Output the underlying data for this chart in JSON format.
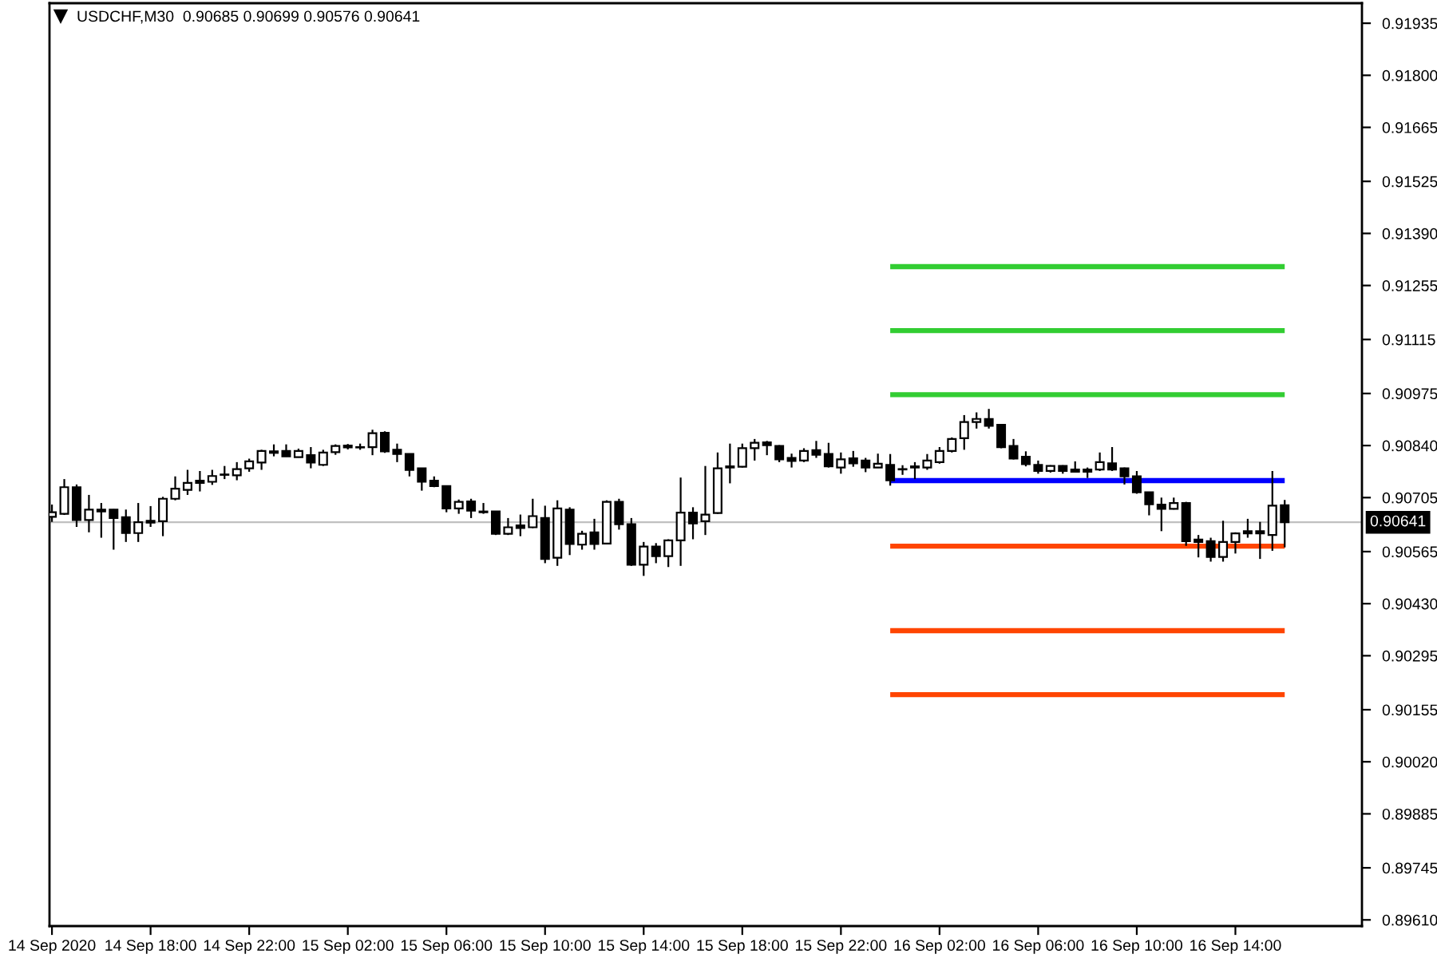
{
  "chart_data": {
    "type": "candlestick",
    "title": "USDCHF,M30  0.90685 0.90699 0.90576 0.90641",
    "color": "#000000",
    "x": [
      "2020-09-14T14:00",
      "2020-09-14T14:30",
      "2020-09-14T15:00",
      "2020-09-14T15:30",
      "2020-09-14T16:00",
      "2020-09-14T16:30",
      "2020-09-14T17:00",
      "2020-09-14T17:30",
      "2020-09-14T18:00",
      "2020-09-14T18:30",
      "2020-09-14T19:00",
      "2020-09-14T19:30",
      "2020-09-14T20:00",
      "2020-09-14T20:30",
      "2020-09-14T21:00",
      "2020-09-14T21:30",
      "2020-09-14T22:00",
      "2020-09-14T22:30",
      "2020-09-14T23:00",
      "2020-09-14T23:30",
      "2020-09-15T00:00",
      "2020-09-15T00:30",
      "2020-09-15T01:00",
      "2020-09-15T01:30",
      "2020-09-15T02:00",
      "2020-09-15T02:30",
      "2020-09-15T03:00",
      "2020-09-15T03:30",
      "2020-09-15T04:00",
      "2020-09-15T04:30",
      "2020-09-15T05:00",
      "2020-09-15T05:30",
      "2020-09-15T06:00",
      "2020-09-15T06:30",
      "2020-09-15T07:00",
      "2020-09-15T07:30",
      "2020-09-15T08:00",
      "2020-09-15T08:30",
      "2020-09-15T09:00",
      "2020-09-15T09:30",
      "2020-09-15T10:00",
      "2020-09-15T10:30",
      "2020-09-15T11:00",
      "2020-09-15T11:30",
      "2020-09-15T12:00",
      "2020-09-15T12:30",
      "2020-09-15T13:00",
      "2020-09-15T13:30",
      "2020-09-15T14:00",
      "2020-09-15T14:30",
      "2020-09-15T15:00",
      "2020-09-15T15:30",
      "2020-09-15T16:00",
      "2020-09-15T16:30",
      "2020-09-15T17:00",
      "2020-09-15T17:30",
      "2020-09-15T18:00",
      "2020-09-15T18:30",
      "2020-09-15T19:00",
      "2020-09-15T19:30",
      "2020-09-15T20:00",
      "2020-09-15T20:30",
      "2020-09-15T21:00",
      "2020-09-15T21:30",
      "2020-09-15T22:00",
      "2020-09-15T22:30",
      "2020-09-15T23:00",
      "2020-09-15T23:30",
      "2020-09-16T00:00",
      "2020-09-16T00:30",
      "2020-09-16T01:00",
      "2020-09-16T01:30",
      "2020-09-16T02:00",
      "2020-09-16T02:30",
      "2020-09-16T03:00",
      "2020-09-16T03:30",
      "2020-09-16T04:00",
      "2020-09-16T04:30",
      "2020-09-16T05:00",
      "2020-09-16T05:30",
      "2020-09-16T06:00",
      "2020-09-16T06:30",
      "2020-09-16T07:00",
      "2020-09-16T07:30",
      "2020-09-16T08:00",
      "2020-09-16T08:30",
      "2020-09-16T09:00",
      "2020-09-16T09:30",
      "2020-09-16T10:00",
      "2020-09-16T10:30",
      "2020-09-16T11:00",
      "2020-09-16T11:30",
      "2020-09-16T12:00",
      "2020-09-16T12:30",
      "2020-09-16T13:00",
      "2020-09-16T13:30",
      "2020-09-16T14:00",
      "2020-09-16T14:30",
      "2020-09-16T15:00",
      "2020-09-16T15:30",
      "2020-09-16T16:00"
    ],
    "ohlc": [
      [
        0.90655,
        0.90687,
        0.90642,
        0.90667
      ],
      [
        0.90663,
        0.90753,
        0.9066,
        0.90732
      ],
      [
        0.90732,
        0.90739,
        0.90629,
        0.90647
      ],
      [
        0.90647,
        0.90712,
        0.90615,
        0.90674
      ],
      [
        0.90674,
        0.90691,
        0.90601,
        0.90669
      ],
      [
        0.90674,
        0.90675,
        0.9057,
        0.90652
      ],
      [
        0.90654,
        0.90674,
        0.9059,
        0.90613
      ],
      [
        0.90613,
        0.90691,
        0.9059,
        0.90641
      ],
      [
        0.90645,
        0.90683,
        0.90629,
        0.9064
      ],
      [
        0.90644,
        0.90707,
        0.90605,
        0.90702
      ],
      [
        0.90702,
        0.9076,
        0.90698,
        0.90728
      ],
      [
        0.90725,
        0.90777,
        0.90712,
        0.90743
      ],
      [
        0.90749,
        0.90774,
        0.90721,
        0.90743
      ],
      [
        0.90746,
        0.90777,
        0.90738,
        0.90761
      ],
      [
        0.90764,
        0.90787,
        0.90753,
        0.90765
      ],
      [
        0.90763,
        0.90797,
        0.9075,
        0.90779
      ],
      [
        0.90781,
        0.90806,
        0.90772,
        0.90799
      ],
      [
        0.90796,
        0.90829,
        0.90777,
        0.90826
      ],
      [
        0.90825,
        0.90843,
        0.90812,
        0.90821
      ],
      [
        0.90826,
        0.90843,
        0.90811,
        0.90812
      ],
      [
        0.9081,
        0.90832,
        0.90809,
        0.90826
      ],
      [
        0.90815,
        0.90836,
        0.90781,
        0.90796
      ],
      [
        0.9079,
        0.90829,
        0.90787,
        0.90822
      ],
      [
        0.90823,
        0.90843,
        0.90816,
        0.90839
      ],
      [
        0.9084,
        0.90844,
        0.9083,
        0.90835
      ],
      [
        0.90835,
        0.90845,
        0.90829,
        0.90836
      ],
      [
        0.90836,
        0.90881,
        0.90815,
        0.90872
      ],
      [
        0.90873,
        0.90877,
        0.90821,
        0.90825
      ],
      [
        0.90829,
        0.90845,
        0.90797,
        0.90818
      ],
      [
        0.90818,
        0.90819,
        0.9076,
        0.90777
      ],
      [
        0.90781,
        0.90782,
        0.90723,
        0.90746
      ],
      [
        0.90749,
        0.9076,
        0.90732,
        0.90735
      ],
      [
        0.90735,
        0.90736,
        0.90667,
        0.90677
      ],
      [
        0.90677,
        0.907,
        0.90663,
        0.90694
      ],
      [
        0.90695,
        0.90702,
        0.90652,
        0.90671
      ],
      [
        0.90669,
        0.90691,
        0.90663,
        0.90667
      ],
      [
        0.90669,
        0.9067,
        0.90608,
        0.90611
      ],
      [
        0.90611,
        0.90652,
        0.90608,
        0.90628
      ],
      [
        0.90633,
        0.90661,
        0.90605,
        0.90626
      ],
      [
        0.90628,
        0.90702,
        0.90626,
        0.90657
      ],
      [
        0.90652,
        0.90684,
        0.90535,
        0.90546
      ],
      [
        0.90549,
        0.90698,
        0.90528,
        0.90677
      ],
      [
        0.90674,
        0.9068,
        0.90556,
        0.90585
      ],
      [
        0.90583,
        0.90619,
        0.9057,
        0.90611
      ],
      [
        0.90615,
        0.9065,
        0.9057,
        0.90585
      ],
      [
        0.90586,
        0.90698,
        0.90585,
        0.90694
      ],
      [
        0.90694,
        0.90702,
        0.90622,
        0.90636
      ],
      [
        0.90636,
        0.90652,
        0.90528,
        0.90531
      ],
      [
        0.90531,
        0.9059,
        0.90502,
        0.90578
      ],
      [
        0.90578,
        0.90587,
        0.90535,
        0.90553
      ],
      [
        0.90553,
        0.90597,
        0.90525,
        0.90594
      ],
      [
        0.90594,
        0.90757,
        0.90528,
        0.90666
      ],
      [
        0.90666,
        0.9068,
        0.90597,
        0.90638
      ],
      [
        0.90644,
        0.90787,
        0.90608,
        0.90661
      ],
      [
        0.90665,
        0.90822,
        0.90663,
        0.90781
      ],
      [
        0.90783,
        0.90845,
        0.90742,
        0.90786
      ],
      [
        0.90785,
        0.90845,
        0.90783,
        0.90833
      ],
      [
        0.90833,
        0.90857,
        0.90801,
        0.90847
      ],
      [
        0.90848,
        0.90852,
        0.90815,
        0.90841
      ],
      [
        0.90839,
        0.90841,
        0.90797,
        0.90804
      ],
      [
        0.90808,
        0.90819,
        0.90783,
        0.908
      ],
      [
        0.90801,
        0.90833,
        0.90797,
        0.90826
      ],
      [
        0.90828,
        0.90852,
        0.90808,
        0.90816
      ],
      [
        0.90818,
        0.90847,
        0.90783,
        0.90786
      ],
      [
        0.90783,
        0.90822,
        0.90767,
        0.90804
      ],
      [
        0.90807,
        0.90826,
        0.90785,
        0.90794
      ],
      [
        0.90801,
        0.90808,
        0.90771,
        0.90783
      ],
      [
        0.90783,
        0.90819,
        0.90782,
        0.90793
      ],
      [
        0.9079,
        0.90818,
        0.90736,
        0.9075
      ],
      [
        0.90778,
        0.90789,
        0.90764,
        0.90779
      ],
      [
        0.90783,
        0.90797,
        0.90753,
        0.90786
      ],
      [
        0.90783,
        0.90818,
        0.90777,
        0.90801
      ],
      [
        0.90797,
        0.90836,
        0.90793,
        0.90826
      ],
      [
        0.90826,
        0.90861,
        0.90822,
        0.90857
      ],
      [
        0.90859,
        0.90919,
        0.90829,
        0.90901
      ],
      [
        0.90901,
        0.90926,
        0.90884,
        0.90909
      ],
      [
        0.90909,
        0.90935,
        0.90884,
        0.90891
      ],
      [
        0.90894,
        0.90895,
        0.90833,
        0.90836
      ],
      [
        0.90839,
        0.90857,
        0.90804,
        0.90806
      ],
      [
        0.90811,
        0.90825,
        0.90786,
        0.90792
      ],
      [
        0.9079,
        0.90801,
        0.90767,
        0.90774
      ],
      [
        0.90774,
        0.90789,
        0.9077,
        0.90787
      ],
      [
        0.90787,
        0.90789,
        0.90767,
        0.90774
      ],
      [
        0.90778,
        0.90799,
        0.90771,
        0.90772
      ],
      [
        0.90778,
        0.90783,
        0.90756,
        0.90772
      ],
      [
        0.90778,
        0.90822,
        0.90774,
        0.90797
      ],
      [
        0.90794,
        0.90836,
        0.90774,
        0.90778
      ],
      [
        0.90781,
        0.90783,
        0.90739,
        0.9076
      ],
      [
        0.9076,
        0.90774,
        0.90715,
        0.90719
      ],
      [
        0.90719,
        0.9072,
        0.90659,
        0.90688
      ],
      [
        0.90687,
        0.90705,
        0.90618,
        0.90676
      ],
      [
        0.90676,
        0.90705,
        0.90674,
        0.90691
      ],
      [
        0.90691,
        0.90694,
        0.9058,
        0.90592
      ],
      [
        0.90596,
        0.90608,
        0.9055,
        0.9059
      ],
      [
        0.90592,
        0.90601,
        0.90539,
        0.90551
      ],
      [
        0.90551,
        0.90645,
        0.90539,
        0.9059
      ],
      [
        0.9059,
        0.90615,
        0.9056,
        0.90612
      ],
      [
        0.90618,
        0.9065,
        0.90601,
        0.90612
      ],
      [
        0.90618,
        0.90642,
        0.90546,
        0.90612
      ],
      [
        0.90608,
        0.90774,
        0.90567,
        0.90684
      ],
      [
        0.90685,
        0.90699,
        0.90576,
        0.90641
      ]
    ],
    "series": [
      {
        "type": "line",
        "x": [
          "2020-09-16T00:00",
          "2020-09-16T16:00"
        ],
        "values": [
          0.91304,
          0.91304
        ],
        "color": "#32cd32"
      },
      {
        "type": "line",
        "x": [
          "2020-09-16T00:00",
          "2020-09-16T16:00"
        ],
        "values": [
          0.91138,
          0.91138
        ],
        "color": "#32cd32"
      },
      {
        "type": "line",
        "x": [
          "2020-09-16T00:00",
          "2020-09-16T16:00"
        ],
        "values": [
          0.90972,
          0.90972
        ],
        "color": "#32cd32"
      },
      {
        "type": "line",
        "x": [
          "2020-09-16T00:00",
          "2020-09-16T16:00"
        ],
        "values": [
          0.90749,
          0.90749
        ],
        "color": "#0000ff"
      },
      {
        "type": "line",
        "x": [
          "2020-09-16T00:00",
          "2020-09-16T16:00"
        ],
        "values": [
          0.90579,
          0.90579
        ],
        "color": "#ff4500"
      },
      {
        "type": "line",
        "x": [
          "2020-09-16T00:00",
          "2020-09-16T16:00"
        ],
        "values": [
          0.9036,
          0.9036
        ],
        "color": "#ff4500"
      },
      {
        "type": "line",
        "x": [
          "2020-09-16T00:00",
          "2020-09-16T16:00"
        ],
        "values": [
          0.90194,
          0.90194
        ],
        "color": "#ff4500"
      }
    ],
    "ref_lines": [
      {
        "axis": "y",
        "value": 0.90641,
        "label": "0.90641",
        "color": "#c0c0c0"
      }
    ],
    "xlim": [
      "2020-09-14T13:54",
      "2020-09-16T19:08"
    ],
    "xticks": [
      {
        "value": "2020-09-14T14:00",
        "label": "14 Sep 2020"
      },
      {
        "value": "2020-09-14T18:00",
        "label": "14 Sep 18:00"
      },
      {
        "value": "2020-09-14T22:00",
        "label": "14 Sep 22:00"
      },
      {
        "value": "2020-09-15T02:00",
        "label": "15 Sep 02:00"
      },
      {
        "value": "2020-09-15T06:00",
        "label": "15 Sep 06:00"
      },
      {
        "value": "2020-09-15T10:00",
        "label": "15 Sep 10:00"
      },
      {
        "value": "2020-09-15T14:00",
        "label": "15 Sep 14:00"
      },
      {
        "value": "2020-09-15T18:00",
        "label": "15 Sep 18:00"
      },
      {
        "value": "2020-09-15T22:00",
        "label": "15 Sep 22:00"
      },
      {
        "value": "2020-09-16T02:00",
        "label": "16 Sep 02:00"
      },
      {
        "value": "2020-09-16T06:00",
        "label": "16 Sep 06:00"
      },
      {
        "value": "2020-09-16T10:00",
        "label": "16 Sep 10:00"
      },
      {
        "value": "2020-09-16T14:00",
        "label": "16 Sep 14:00"
      }
    ],
    "ylim": [
      0.89594,
      0.91987
    ],
    "yticks": [
      0.91935,
      {
        "value": 0.918,
        "label": "0.91800"
      },
      0.91665,
      0.91525,
      {
        "value": 0.9139,
        "label": "0.91390"
      },
      0.91255,
      0.91115,
      0.90975,
      {
        "value": 0.9084,
        "label": "0.90840"
      },
      0.90705,
      0.90565,
      {
        "value": 0.9043,
        "label": "0.90430"
      },
      0.90295,
      0.90155,
      {
        "value": 0.9002,
        "label": "0.90020"
      },
      0.89885,
      0.89745,
      {
        "value": 0.8961,
        "label": "0.89610"
      }
    ]
  }
}
